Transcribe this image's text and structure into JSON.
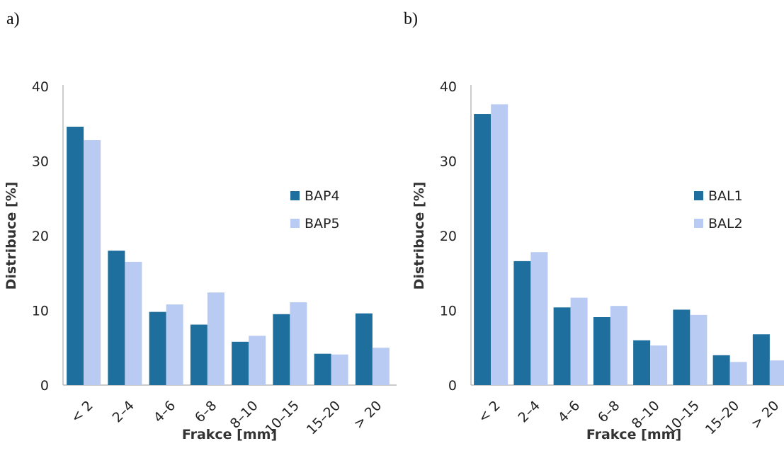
{
  "panel_labels": [
    "a)",
    "b)"
  ],
  "chart_data": [
    {
      "type": "bar",
      "panel": "a)",
      "categories": [
        "< 2",
        "2–4",
        "4–6",
        "6–8",
        "8–10",
        "10–15",
        "15–20",
        "> 20"
      ],
      "series": [
        {
          "name": "BAP4",
          "color": "#1f6f9e",
          "values": [
            34.6,
            18.0,
            9.8,
            8.1,
            5.8,
            9.5,
            4.2,
            9.6
          ]
        },
        {
          "name": "BAP5",
          "color": "#b9cbf2",
          "values": [
            32.8,
            16.5,
            10.8,
            12.4,
            6.6,
            11.1,
            4.1,
            5.0
          ]
        }
      ],
      "xlabel": "Frakce [mm]",
      "ylabel": "Distribuce [%]",
      "yticks": [
        0,
        10,
        20,
        30,
        40
      ],
      "ylim": [
        0,
        40
      ],
      "grid": false,
      "legend": "right"
    },
    {
      "type": "bar",
      "panel": "b)",
      "categories": [
        "< 2",
        "2–4",
        "4–6",
        "6–8",
        "8–10",
        "10–15",
        "15–20",
        "> 20"
      ],
      "series": [
        {
          "name": "BAL1",
          "color": "#1f6f9e",
          "values": [
            36.3,
            16.6,
            10.4,
            9.1,
            6.0,
            10.1,
            4.0,
            6.8
          ]
        },
        {
          "name": "BAL2",
          "color": "#b9cbf2",
          "values": [
            37.6,
            17.8,
            11.7,
            10.6,
            5.3,
            9.4,
            3.1,
            3.3
          ]
        }
      ],
      "xlabel": "Frakce [mm]",
      "ylabel": "Distribuce [%]",
      "yticks": [
        0,
        10,
        20,
        30,
        40
      ],
      "ylim": [
        0,
        40
      ],
      "grid": false,
      "legend": "right"
    }
  ]
}
